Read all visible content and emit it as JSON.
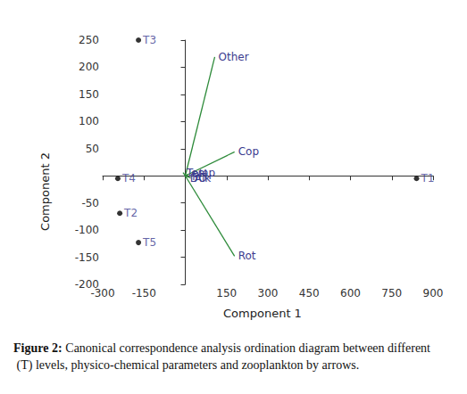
{
  "chart_data": {
    "type": "scatter",
    "caption_label": "Figure 2:",
    "caption": "Canonical correspondence analysis ordination diagram between different (T) levels, physico-chemical parameters and zooplankton by arrows.",
    "x_label": "Component 1",
    "y_label": "Component 2",
    "xlim": [
      -300,
      900
    ],
    "xticks": [
      -300,
      -150,
      150,
      300,
      450,
      600,
      750,
      900
    ],
    "ylim": [
      -200,
      250
    ],
    "yticks": [
      -200,
      -150,
      -100,
      -50,
      50,
      100,
      150,
      200,
      250
    ],
    "grid": false,
    "points": {
      "color": "#000000",
      "label_color": "#3b3b8f",
      "labels": [
        "T1",
        "T2",
        "T3",
        "T4",
        "T5"
      ],
      "x": [
        840,
        -238,
        -170,
        -245,
        -170
      ],
      "y": [
        -5,
        -69,
        250,
        -5,
        -123
      ]
    },
    "arrows": {
      "color": "#2e8b3a",
      "label_color": "#3b3b8f",
      "labels": [
        "Other",
        "Cop",
        "Rot",
        "Temp",
        "pH",
        "DO",
        "Alk"
      ],
      "x": [
        107,
        179,
        179,
        -8,
        12,
        4,
        20
      ],
      "y": [
        219,
        44,
        -148,
        6,
        3,
        -4,
        -4
      ]
    }
  }
}
